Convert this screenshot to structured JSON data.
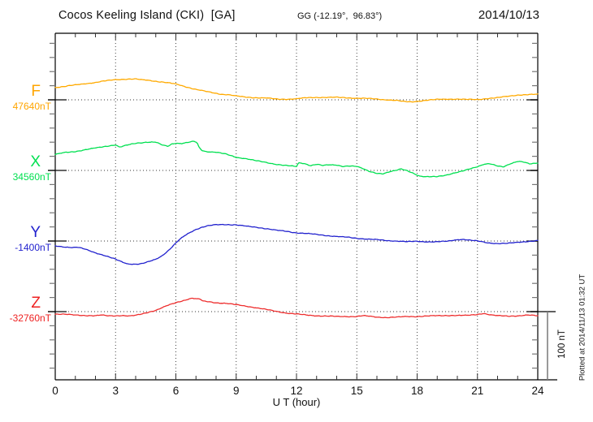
{
  "header": {
    "station": "Cocos Keeling Island (CKI)  [GA]",
    "coords": "GG (-12.19°,  96.83°)",
    "date": "2014/10/13"
  },
  "xaxis": {
    "label": "U T (hour)",
    "tick_hours": [
      0,
      3,
      6,
      9,
      12,
      15,
      18,
      21,
      24
    ],
    "tick_labels": [
      "0",
      "3",
      "6",
      "9",
      "12",
      "15",
      "18",
      "21",
      "24"
    ]
  },
  "scale_bar": {
    "label": "100 nT",
    "nT": 100
  },
  "footer_note": "Plotted at 2014/11/13 01:32 UT",
  "channels": [
    {
      "id": "F",
      "label": "F",
      "value_label": "47640nT",
      "color": "#FFA500"
    },
    {
      "id": "X",
      "label": "X",
      "value_label": "34560nT",
      "color": "#00E050"
    },
    {
      "id": "Y",
      "label": "Y",
      "value_label": "-1400nT",
      "color": "#2222CE"
    },
    {
      "id": "Z",
      "label": "Z",
      "value_label": "-32760nT",
      "color": "#EE2222"
    }
  ],
  "chart_data": {
    "type": "line",
    "title": "Cocos Keeling Island (CKI) magnetogram 2014/10/13",
    "xlabel": "U T (hour)",
    "x_range": [
      0,
      24
    ],
    "grid": "dotted vertical every 3 h; dotted horizontal baseline per channel",
    "legend_position": "left margin channel labels",
    "y_scale_note": "offsets in nT relative to each channel baseline; scale bar = 100 nT",
    "series": [
      {
        "name": "F",
        "baseline_nT": 47640,
        "color": "#FFAA00",
        "points": [
          [
            0,
            18
          ],
          [
            0.5,
            19.5
          ],
          [
            1,
            21.5
          ],
          [
            1.5,
            23.5
          ],
          [
            2,
            25
          ],
          [
            2.5,
            27.5
          ],
          [
            3,
            29.5
          ],
          [
            3.5,
            30
          ],
          [
            4,
            30
          ],
          [
            4.3,
            29
          ],
          [
            4.6,
            28.5
          ],
          [
            5,
            27
          ],
          [
            5.5,
            25
          ],
          [
            6,
            23
          ],
          [
            6.5,
            19
          ],
          [
            7,
            15
          ],
          [
            7.5,
            12
          ],
          [
            8,
            9.5
          ],
          [
            8.3,
            8
          ],
          [
            8.6,
            7.5
          ],
          [
            9,
            5.5
          ],
          [
            9.5,
            4
          ],
          [
            10,
            3
          ],
          [
            10.5,
            2.5
          ],
          [
            11,
            1
          ],
          [
            11.5,
            1
          ],
          [
            12,
            1.5
          ],
          [
            12.5,
            3
          ],
          [
            13,
            3.5
          ],
          [
            13.5,
            3.5
          ],
          [
            14,
            3.5
          ],
          [
            14.5,
            3
          ],
          [
            15,
            2.5
          ],
          [
            15.5,
            2
          ],
          [
            16,
            1
          ],
          [
            16.5,
            0
          ],
          [
            17,
            -1
          ],
          [
            17.3,
            -2.5
          ],
          [
            17.7,
            -3
          ],
          [
            18,
            -2
          ],
          [
            18.5,
            -0.5
          ],
          [
            19,
            0.5
          ],
          [
            19.5,
            1
          ],
          [
            20,
            1
          ],
          [
            20.5,
            0.5
          ],
          [
            21,
            0.5
          ],
          [
            21.5,
            2
          ],
          [
            22,
            3
          ],
          [
            22.5,
            5
          ],
          [
            23,
            7
          ],
          [
            23.5,
            7.5
          ],
          [
            24,
            8
          ]
        ]
      },
      {
        "name": "X",
        "baseline_nT": 34560,
        "color": "#00E050",
        "points": [
          [
            0,
            23
          ],
          [
            0.5,
            26
          ],
          [
            1,
            27.5
          ],
          [
            1.5,
            30
          ],
          [
            2,
            32.5
          ],
          [
            2.5,
            35
          ],
          [
            3,
            37
          ],
          [
            3.2,
            33.5
          ],
          [
            3.5,
            36
          ],
          [
            4,
            39.5
          ],
          [
            4.5,
            41
          ],
          [
            5,
            41
          ],
          [
            5.3,
            37
          ],
          [
            5.6,
            35
          ],
          [
            5.8,
            38.5
          ],
          [
            6,
            39.5
          ],
          [
            6.3,
            39
          ],
          [
            6.6,
            40.5
          ],
          [
            6.9,
            42
          ],
          [
            7.05,
            40.5
          ],
          [
            7.15,
            33.5
          ],
          [
            7.3,
            29
          ],
          [
            7.5,
            27.5
          ],
          [
            8,
            26.5
          ],
          [
            8.5,
            23.5
          ],
          [
            9,
            19
          ],
          [
            9.5,
            17
          ],
          [
            10,
            14
          ],
          [
            10.5,
            11.5
          ],
          [
            11,
            9
          ],
          [
            11.5,
            7
          ],
          [
            12,
            5.5
          ],
          [
            12.1,
            11
          ],
          [
            12.4,
            10
          ],
          [
            12.7,
            7
          ],
          [
            13,
            9
          ],
          [
            13.3,
            7
          ],
          [
            13.6,
            8
          ],
          [
            14,
            8
          ],
          [
            14.3,
            6
          ],
          [
            14.6,
            6.5
          ],
          [
            15,
            5.5
          ],
          [
            15.3,
            2.5
          ],
          [
            15.6,
            -1
          ],
          [
            16,
            -4
          ],
          [
            16.3,
            -5
          ],
          [
            16.6,
            -2.5
          ],
          [
            17,
            0.5
          ],
          [
            17.2,
            2.5
          ],
          [
            17.5,
            0
          ],
          [
            17.8,
            -4
          ],
          [
            18.1,
            -8.5
          ],
          [
            18.4,
            -9.5
          ],
          [
            18.7,
            -9
          ],
          [
            19,
            -8.5
          ],
          [
            19.5,
            -6.5
          ],
          [
            20,
            -3
          ],
          [
            20.3,
            -0.5
          ],
          [
            20.6,
            2.5
          ],
          [
            21,
            5.5
          ],
          [
            21.3,
            8.5
          ],
          [
            21.6,
            9.5
          ],
          [
            22,
            6.5
          ],
          [
            22.3,
            5.5
          ],
          [
            22.6,
            9.5
          ],
          [
            23,
            13
          ],
          [
            23.3,
            12
          ],
          [
            23.6,
            9.5
          ],
          [
            24,
            11
          ]
        ]
      },
      {
        "name": "Y",
        "baseline_nT": -1400,
        "color": "#2222CE",
        "points": [
          [
            0,
            -7
          ],
          [
            0.5,
            -8.5
          ],
          [
            0.9,
            -9.5
          ],
          [
            1.1,
            -9
          ],
          [
            1.5,
            -12
          ],
          [
            2,
            -17
          ],
          [
            2.5,
            -21.5
          ],
          [
            3,
            -26.5
          ],
          [
            3.3,
            -30
          ],
          [
            3.6,
            -33
          ],
          [
            4,
            -33.5
          ],
          [
            4.3,
            -33
          ],
          [
            4.6,
            -30.5
          ],
          [
            5,
            -26.5
          ],
          [
            5.3,
            -21.5
          ],
          [
            5.6,
            -14.5
          ],
          [
            5.9,
            -6
          ],
          [
            6.1,
            0
          ],
          [
            6.4,
            7
          ],
          [
            6.7,
            12.5
          ],
          [
            7,
            17
          ],
          [
            7.3,
            20
          ],
          [
            7.6,
            22
          ],
          [
            8,
            23.5
          ],
          [
            8.5,
            24
          ],
          [
            9,
            23.5
          ],
          [
            9.5,
            21.5
          ],
          [
            10,
            20
          ],
          [
            10.5,
            18
          ],
          [
            11,
            15.5
          ],
          [
            11.5,
            14
          ],
          [
            12,
            12
          ],
          [
            12.5,
            11
          ],
          [
            13,
            9.5
          ],
          [
            13.5,
            8
          ],
          [
            14,
            6.5
          ],
          [
            14.5,
            5.5
          ],
          [
            15,
            4
          ],
          [
            15.5,
            3
          ],
          [
            16,
            2
          ],
          [
            16.5,
            0.5
          ],
          [
            17,
            0
          ],
          [
            17.5,
            -1
          ],
          [
            18,
            -0.5
          ],
          [
            18.5,
            -1
          ],
          [
            19,
            -1
          ],
          [
            19.5,
            -0.5
          ],
          [
            20,
            2
          ],
          [
            20.3,
            2.5
          ],
          [
            20.7,
            1
          ],
          [
            21,
            0
          ],
          [
            21.5,
            -2.5
          ],
          [
            22,
            -3.5
          ],
          [
            22.5,
            -3.5
          ],
          [
            23,
            -2
          ],
          [
            23.5,
            -0.5
          ],
          [
            24,
            0.5
          ]
        ]
      },
      {
        "name": "Z",
        "baseline_nT": -32760,
        "color": "#EE2E2E",
        "points": [
          [
            0,
            -3.5
          ],
          [
            0.5,
            -4
          ],
          [
            1,
            -5
          ],
          [
            1.5,
            -5.5
          ],
          [
            2,
            -6
          ],
          [
            2.3,
            -5
          ],
          [
            2.6,
            -6
          ],
          [
            3,
            -6
          ],
          [
            3.3,
            -5.5
          ],
          [
            3.7,
            -6.5
          ],
          [
            4,
            -5.5
          ],
          [
            4.3,
            -3.5
          ],
          [
            4.6,
            -1
          ],
          [
            5,
            2
          ],
          [
            5.3,
            5.5
          ],
          [
            5.6,
            9
          ],
          [
            6,
            13
          ],
          [
            6.3,
            15.5
          ],
          [
            6.6,
            18
          ],
          [
            6.8,
            19.5
          ],
          [
            7,
            18.5
          ],
          [
            7.2,
            18
          ],
          [
            7.35,
            15
          ],
          [
            7.6,
            14.5
          ],
          [
            8,
            13
          ],
          [
            8.5,
            12
          ],
          [
            9,
            10
          ],
          [
            9.5,
            8
          ],
          [
            10,
            5.5
          ],
          [
            10.5,
            3
          ],
          [
            11,
            0.5
          ],
          [
            11.5,
            -2
          ],
          [
            12,
            -3.5
          ],
          [
            12.5,
            -5
          ],
          [
            13,
            -6
          ],
          [
            13.5,
            -6.5
          ],
          [
            14,
            -7
          ],
          [
            14.5,
            -7
          ],
          [
            15,
            -7
          ],
          [
            15.3,
            -6
          ],
          [
            15.7,
            -7
          ],
          [
            16,
            -8
          ],
          [
            16.5,
            -8.5
          ],
          [
            17,
            -8
          ],
          [
            17.5,
            -7
          ],
          [
            18,
            -7
          ],
          [
            18.5,
            -6.5
          ],
          [
            19,
            -6
          ],
          [
            19.5,
            -5.5
          ],
          [
            20,
            -5.5
          ],
          [
            20.5,
            -5.5
          ],
          [
            21,
            -4
          ],
          [
            21.3,
            -2.5
          ],
          [
            21.7,
            -5
          ],
          [
            22,
            -6
          ],
          [
            22.5,
            -6.5
          ],
          [
            23,
            -6
          ],
          [
            23.5,
            -5
          ],
          [
            24,
            -6
          ]
        ]
      }
    ]
  }
}
